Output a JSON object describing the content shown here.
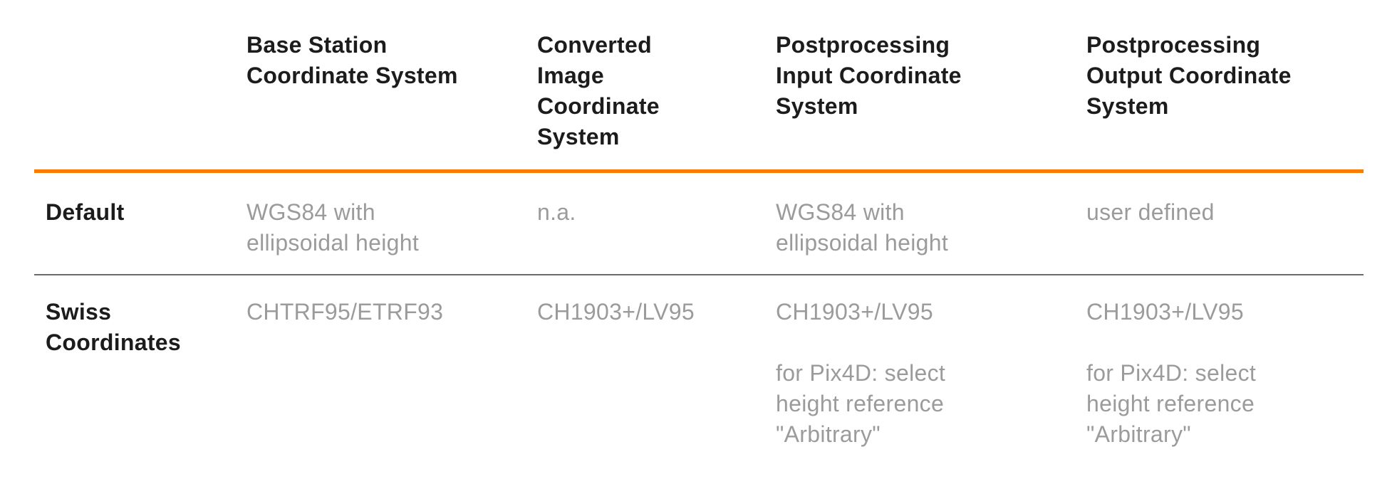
{
  "table": {
    "columns": [
      {
        "label": ""
      },
      {
        "label": "Base Station\nCoordinate System"
      },
      {
        "label": "Converted\nImage\nCoordinate\nSystem"
      },
      {
        "label": "Postprocessing\nInput Coordinate\nSystem"
      },
      {
        "label": "Postprocessing\nOutput Coordinate\nSystem"
      }
    ],
    "rows": [
      {
        "label": "Default",
        "cells": [
          "WGS84 with\nellipsoidal height",
          "n.a.",
          "WGS84 with\nellipsoidal height",
          "user defined"
        ]
      },
      {
        "label": "Swiss\nCoordinates",
        "cells": [
          "CHTRF95/ETRF93",
          "CH1903+/LV95",
          "CH1903+/LV95\n\nfor Pix4D: select\nheight reference\n\"Arbitrary\"",
          "CH1903+/LV95\n\nfor Pix4D: select\nheight reference\n\"Arbitrary\""
        ]
      }
    ]
  },
  "colors": {
    "header_rule": "#f97c00",
    "row_rule": "#6b6b6b",
    "heading_text": "#1c1c1c",
    "body_text": "#9b9b9b"
  }
}
